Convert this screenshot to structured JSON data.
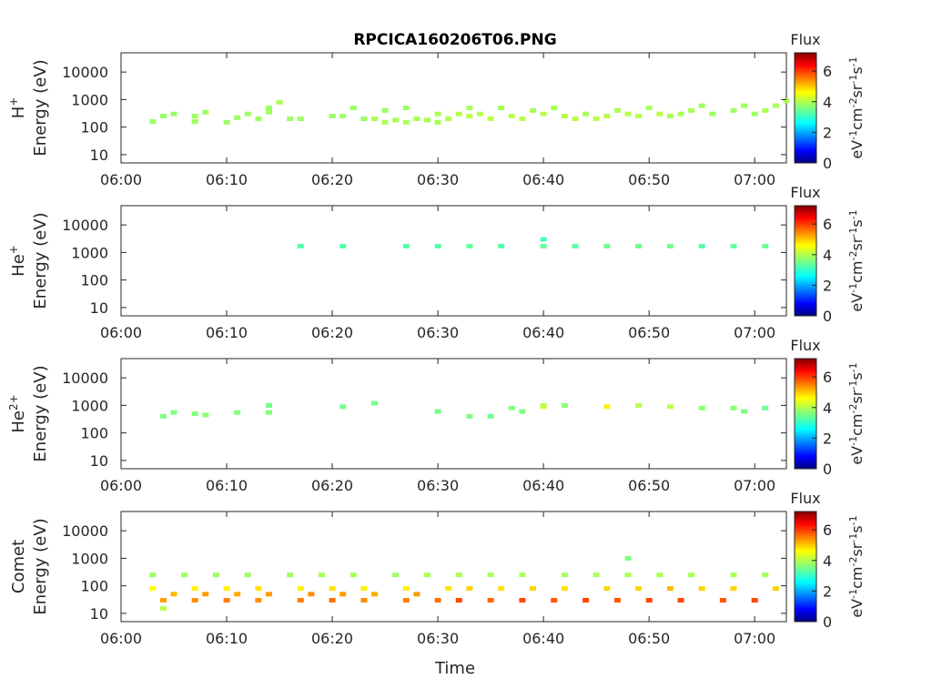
{
  "title": "RPCICA160206T06.PNG",
  "xlabel": "Time",
  "x_ticks": [
    "06:00",
    "06:10",
    "06:20",
    "06:30",
    "06:40",
    "06:50",
    "07:00"
  ],
  "colorbar": {
    "title": "Flux",
    "ticks": [
      "0",
      "2",
      "4",
      "6"
    ],
    "unit_parts": [
      "eV",
      "-1",
      "cm",
      "-2",
      "sr",
      "-1",
      "s",
      "-1"
    ],
    "range": [
      0,
      7.2
    ],
    "colormap": "jet"
  },
  "chart_data": [
    {
      "type": "heatmap",
      "species_base": "H",
      "species_sup": "+",
      "ylabel": "Energy (eV)",
      "y_ticks": [
        "10",
        "100",
        "1000",
        "10000"
      ],
      "xlim": [
        "06:00",
        "07:03"
      ],
      "ylim": [
        5,
        50000
      ],
      "yscale": "log",
      "cells": [
        [
          "06:03",
          160,
          3.8
        ],
        [
          "06:04",
          250,
          3.8
        ],
        [
          "06:05",
          300,
          3.8
        ],
        [
          "06:07",
          160,
          3.8
        ],
        [
          "06:07",
          250,
          3.8
        ],
        [
          "06:08",
          350,
          3.8
        ],
        [
          "06:10",
          150,
          3.8
        ],
        [
          "06:11",
          220,
          3.8
        ],
        [
          "06:12",
          300,
          3.8
        ],
        [
          "06:13",
          200,
          3.8
        ],
        [
          "06:14",
          350,
          3.8
        ],
        [
          "06:14",
          500,
          3.8
        ],
        [
          "06:15",
          800,
          3.9
        ],
        [
          "06:16",
          200,
          3.8
        ],
        [
          "06:17",
          200,
          3.8
        ],
        [
          "06:20",
          250,
          3.8
        ],
        [
          "06:21",
          250,
          3.8
        ],
        [
          "06:22",
          500,
          3.8
        ],
        [
          "06:23",
          200,
          3.8
        ],
        [
          "06:24",
          200,
          3.9
        ],
        [
          "06:25",
          150,
          3.9
        ],
        [
          "06:25",
          400,
          3.8
        ],
        [
          "06:26",
          180,
          3.9
        ],
        [
          "06:27",
          150,
          3.9
        ],
        [
          "06:27",
          500,
          3.8
        ],
        [
          "06:28",
          200,
          3.9
        ],
        [
          "06:29",
          180,
          3.9
        ],
        [
          "06:30",
          150,
          3.9
        ],
        [
          "06:30",
          300,
          3.9
        ],
        [
          "06:31",
          200,
          4.0
        ],
        [
          "06:32",
          300,
          4.0
        ],
        [
          "06:33",
          250,
          4.0
        ],
        [
          "06:33",
          500,
          3.9
        ],
        [
          "06:34",
          300,
          4.0
        ],
        [
          "06:35",
          200,
          4.0
        ],
        [
          "06:36",
          500,
          3.9
        ],
        [
          "06:37",
          250,
          4.0
        ],
        [
          "06:38",
          200,
          4.0
        ],
        [
          "06:39",
          400,
          3.9
        ],
        [
          "06:40",
          300,
          4.0
        ],
        [
          "06:41",
          500,
          3.9
        ],
        [
          "06:42",
          250,
          4.0
        ],
        [
          "06:43",
          200,
          4.0
        ],
        [
          "06:44",
          300,
          3.9
        ],
        [
          "06:45",
          200,
          4.0
        ],
        [
          "06:46",
          250,
          4.0
        ],
        [
          "06:47",
          400,
          3.9
        ],
        [
          "06:48",
          300,
          4.0
        ],
        [
          "06:49",
          250,
          4.0
        ],
        [
          "06:50",
          500,
          3.9
        ],
        [
          "06:51",
          300,
          4.0
        ],
        [
          "06:52",
          250,
          3.9
        ],
        [
          "06:53",
          300,
          3.9
        ],
        [
          "06:54",
          400,
          3.9
        ],
        [
          "06:55",
          600,
          3.8
        ],
        [
          "06:56",
          300,
          3.8
        ],
        [
          "06:58",
          400,
          3.8
        ],
        [
          "06:59",
          600,
          3.8
        ],
        [
          "07:00",
          300,
          3.8
        ],
        [
          "07:01",
          400,
          3.9
        ],
        [
          "07:02",
          600,
          3.9
        ],
        [
          "07:03",
          900,
          3.9
        ]
      ]
    },
    {
      "type": "heatmap",
      "species_base": "He",
      "species_sup": "+",
      "ylabel": "Energy (eV)",
      "y_ticks": [
        "10",
        "100",
        "1000",
        "10000"
      ],
      "xlim": [
        "06:00",
        "07:03"
      ],
      "ylim": [
        5,
        50000
      ],
      "yscale": "log",
      "cells": [
        [
          "06:17",
          1700,
          3.3
        ],
        [
          "06:21",
          1700,
          3.3
        ],
        [
          "06:27",
          1700,
          3.3
        ],
        [
          "06:30",
          1700,
          3.3
        ],
        [
          "06:33",
          1700,
          3.4
        ],
        [
          "06:36",
          1700,
          3.3
        ],
        [
          "06:40",
          1700,
          3.4
        ],
        [
          "06:40",
          3000,
          3.2
        ],
        [
          "06:43",
          1700,
          3.3
        ],
        [
          "06:46",
          1700,
          3.5
        ],
        [
          "06:49",
          1700,
          3.5
        ],
        [
          "06:52",
          1700,
          3.5
        ],
        [
          "06:55",
          1700,
          3.3
        ],
        [
          "06:58",
          1700,
          3.4
        ],
        [
          "07:01",
          1700,
          3.5
        ]
      ]
    },
    {
      "type": "heatmap",
      "species_base": "He",
      "species_sup": "2+",
      "ylabel": "Energy (eV)",
      "y_ticks": [
        "10",
        "100",
        "1000",
        "10000"
      ],
      "xlim": [
        "06:00",
        "07:03"
      ],
      "ylim": [
        5,
        50000
      ],
      "yscale": "log",
      "cells": [
        [
          "06:04",
          400,
          3.6
        ],
        [
          "06:05",
          550,
          3.6
        ],
        [
          "06:07",
          500,
          3.6
        ],
        [
          "06:08",
          450,
          3.7
        ],
        [
          "06:11",
          550,
          3.6
        ],
        [
          "06:14",
          550,
          3.6
        ],
        [
          "06:14",
          1000,
          3.5
        ],
        [
          "06:21",
          900,
          3.5
        ],
        [
          "06:24",
          1200,
          3.5
        ],
        [
          "06:30",
          600,
          3.5
        ],
        [
          "06:33",
          400,
          3.6
        ],
        [
          "06:35",
          400,
          3.5
        ],
        [
          "06:37",
          800,
          3.6
        ],
        [
          "06:38",
          600,
          3.6
        ],
        [
          "06:40",
          900,
          4.6
        ],
        [
          "06:40",
          1000,
          4.0
        ],
        [
          "06:42",
          1000,
          3.7
        ],
        [
          "06:46",
          900,
          4.6
        ],
        [
          "06:49",
          1000,
          4.0
        ],
        [
          "06:52",
          900,
          4.0
        ],
        [
          "06:55",
          800,
          3.7
        ],
        [
          "06:58",
          800,
          3.7
        ],
        [
          "06:59",
          600,
          3.6
        ],
        [
          "07:01",
          800,
          3.5
        ]
      ]
    },
    {
      "type": "heatmap",
      "species_base": "Comet",
      "species_sup": "",
      "ylabel": "Energy (eV)",
      "y_ticks": [
        "10",
        "100",
        "1000",
        "10000"
      ],
      "xlim": [
        "06:00",
        "07:03"
      ],
      "ylim": [
        5,
        50000
      ],
      "yscale": "log",
      "cells": [
        [
          "06:03",
          250,
          3.8
        ],
        [
          "06:03",
          80,
          4.5
        ],
        [
          "06:04",
          30,
          5.2
        ],
        [
          "06:04",
          15,
          4.0
        ],
        [
          "06:05",
          50,
          5.0
        ],
        [
          "06:06",
          250,
          3.8
        ],
        [
          "06:07",
          30,
          5.3
        ],
        [
          "06:07",
          80,
          4.6
        ],
        [
          "06:08",
          50,
          5.2
        ],
        [
          "06:09",
          250,
          3.8
        ],
        [
          "06:10",
          30,
          5.4
        ],
        [
          "06:10",
          80,
          4.6
        ],
        [
          "06:11",
          50,
          5.1
        ],
        [
          "06:12",
          250,
          3.8
        ],
        [
          "06:13",
          30,
          5.3
        ],
        [
          "06:13",
          80,
          4.7
        ],
        [
          "06:14",
          50,
          5.2
        ],
        [
          "06:16",
          250,
          3.8
        ],
        [
          "06:17",
          30,
          5.4
        ],
        [
          "06:17",
          80,
          4.6
        ],
        [
          "06:18",
          50,
          5.3
        ],
        [
          "06:19",
          250,
          3.9
        ],
        [
          "06:20",
          30,
          5.5
        ],
        [
          "06:20",
          80,
          4.7
        ],
        [
          "06:21",
          50,
          5.2
        ],
        [
          "06:22",
          250,
          3.9
        ],
        [
          "06:23",
          30,
          5.3
        ],
        [
          "06:23",
          80,
          4.6
        ],
        [
          "06:24",
          50,
          5.1
        ],
        [
          "06:26",
          250,
          3.8
        ],
        [
          "06:27",
          30,
          5.4
        ],
        [
          "06:27",
          80,
          4.6
        ],
        [
          "06:28",
          50,
          5.2
        ],
        [
          "06:29",
          250,
          3.9
        ],
        [
          "06:30",
          30,
          5.5
        ],
        [
          "06:31",
          80,
          4.7
        ],
        [
          "06:32",
          30,
          5.8
        ],
        [
          "06:32",
          250,
          3.9
        ],
        [
          "06:33",
          80,
          4.8
        ],
        [
          "06:35",
          30,
          5.6
        ],
        [
          "06:35",
          250,
          3.9
        ],
        [
          "06:36",
          80,
          4.7
        ],
        [
          "06:38",
          30,
          5.8
        ],
        [
          "06:38",
          250,
          3.9
        ],
        [
          "06:39",
          80,
          4.8
        ],
        [
          "06:41",
          30,
          5.7
        ],
        [
          "06:42",
          250,
          3.9
        ],
        [
          "06:42",
          80,
          4.7
        ],
        [
          "06:44",
          30,
          5.8
        ],
        [
          "06:45",
          250,
          3.9
        ],
        [
          "06:46",
          80,
          4.8
        ],
        [
          "06:47",
          30,
          5.7
        ],
        [
          "06:48",
          1000,
          3.6
        ],
        [
          "06:48",
          250,
          3.9
        ],
        [
          "06:49",
          80,
          4.8
        ],
        [
          "06:50",
          30,
          5.8
        ],
        [
          "06:51",
          250,
          3.9
        ],
        [
          "06:52",
          80,
          5.0
        ],
        [
          "06:53",
          30,
          5.8
        ],
        [
          "06:54",
          250,
          3.9
        ],
        [
          "06:55",
          80,
          4.8
        ],
        [
          "06:57",
          30,
          5.7
        ],
        [
          "06:58",
          250,
          3.9
        ],
        [
          "06:58",
          80,
          4.8
        ],
        [
          "07:00",
          30,
          5.8
        ],
        [
          "07:01",
          250,
          3.9
        ],
        [
          "07:02",
          80,
          4.8
        ]
      ]
    }
  ]
}
